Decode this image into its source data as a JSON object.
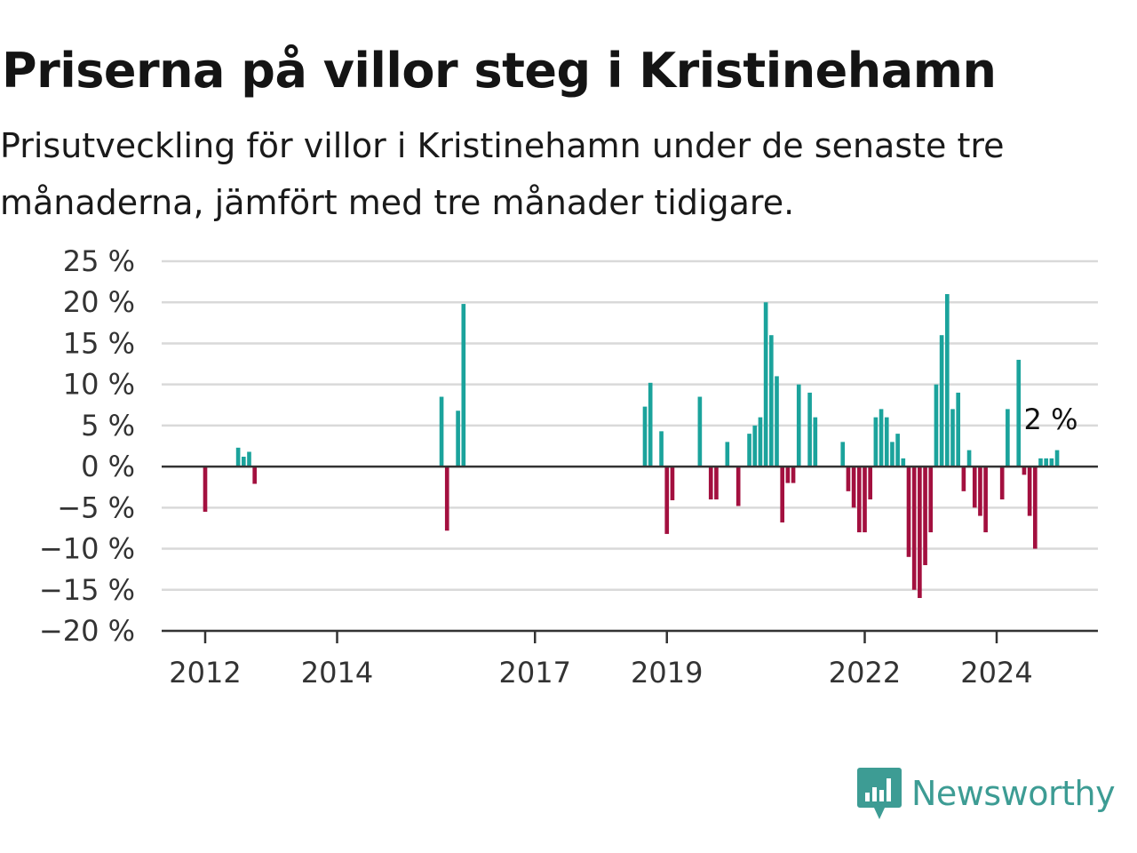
{
  "title": "Priserna på villor steg i Kristinehamn",
  "subtitle": "Prisutveckling för villor i Kristinehamn under de senaste tre månaderna, jämfört med tre månader tidigare.",
  "brand": {
    "name": "Newsworthy",
    "color": "#3d9c94",
    "icon": "newsworthy-logo-icon"
  },
  "colors": {
    "positive": "#1ba39c",
    "negative": "#a3103f",
    "grid": "#d9d9d9",
    "zero_line": "#333333"
  },
  "chart_data": {
    "type": "bar",
    "title": "Priserna på villor steg i Kristinehamn",
    "xlabel": "",
    "ylabel": "",
    "ylim": [
      -20,
      25
    ],
    "y_ticks": [
      25,
      20,
      15,
      10,
      5,
      0,
      -5,
      -10,
      -15,
      -20
    ],
    "y_tick_labels": [
      "25 %",
      "20 %",
      "15 %",
      "10 %",
      "5 %",
      "0 %",
      "−5 %",
      "−10 %",
      "−15 %",
      "−20 %"
    ],
    "x_ticks": [
      {
        "label": "2012",
        "date": "2012-01"
      },
      {
        "label": "2014",
        "date": "2014-01"
      },
      {
        "label": "2017",
        "date": "2017-01"
      },
      {
        "label": "2019",
        "date": "2019-01"
      },
      {
        "label": "2022",
        "date": "2022-01"
      },
      {
        "label": "2024",
        "date": "2024-01"
      }
    ],
    "xlim": [
      "2011-05",
      "2025-06"
    ],
    "last_value_label": "2 %",
    "grid": true,
    "legend": "none",
    "series": [
      {
        "data": [
          {
            "date": "2012-01",
            "value": -5.5
          },
          {
            "date": "2012-07",
            "value": 2.3
          },
          {
            "date": "2012-08",
            "value": 1.2
          },
          {
            "date": "2012-09",
            "value": 1.8
          },
          {
            "date": "2012-10",
            "value": -2.1
          },
          {
            "date": "2015-08",
            "value": 8.5
          },
          {
            "date": "2015-09",
            "value": -7.8
          },
          {
            "date": "2015-11",
            "value": 6.8
          },
          {
            "date": "2015-12",
            "value": 19.8
          },
          {
            "date": "2018-09",
            "value": 7.3
          },
          {
            "date": "2018-10",
            "value": 10.2
          },
          {
            "date": "2018-12",
            "value": 4.3
          },
          {
            "date": "2019-01",
            "value": -8.2
          },
          {
            "date": "2019-02",
            "value": -4.1
          },
          {
            "date": "2019-07",
            "value": 8.5
          },
          {
            "date": "2019-09",
            "value": -4.0
          },
          {
            "date": "2019-10",
            "value": -4.0
          },
          {
            "date": "2019-12",
            "value": 3.0
          },
          {
            "date": "2020-02",
            "value": -4.8
          },
          {
            "date": "2020-04",
            "value": 4.0
          },
          {
            "date": "2020-05",
            "value": 5.0
          },
          {
            "date": "2020-06",
            "value": 6.0
          },
          {
            "date": "2020-07",
            "value": 20.0
          },
          {
            "date": "2020-08",
            "value": 16.0
          },
          {
            "date": "2020-09",
            "value": 11.0
          },
          {
            "date": "2020-10",
            "value": -6.8
          },
          {
            "date": "2020-11",
            "value": -2.0
          },
          {
            "date": "2020-12",
            "value": -2.0
          },
          {
            "date": "2021-01",
            "value": 10.0
          },
          {
            "date": "2021-03",
            "value": 9.0
          },
          {
            "date": "2021-04",
            "value": 6.0
          },
          {
            "date": "2021-09",
            "value": 3.0
          },
          {
            "date": "2021-10",
            "value": -3.0
          },
          {
            "date": "2021-11",
            "value": -5.0
          },
          {
            "date": "2021-12",
            "value": -8.0
          },
          {
            "date": "2022-01",
            "value": -8.0
          },
          {
            "date": "2022-02",
            "value": -4.0
          },
          {
            "date": "2022-03",
            "value": 6.0
          },
          {
            "date": "2022-04",
            "value": 7.0
          },
          {
            "date": "2022-05",
            "value": 6.0
          },
          {
            "date": "2022-06",
            "value": 3.0
          },
          {
            "date": "2022-07",
            "value": 4.0
          },
          {
            "date": "2022-08",
            "value": 1.0
          },
          {
            "date": "2022-09",
            "value": -11.0
          },
          {
            "date": "2022-10",
            "value": -15.0
          },
          {
            "date": "2022-11",
            "value": -16.0
          },
          {
            "date": "2022-12",
            "value": -12.0
          },
          {
            "date": "2023-01",
            "value": -8.0
          },
          {
            "date": "2023-02",
            "value": 10.0
          },
          {
            "date": "2023-03",
            "value": 16.0
          },
          {
            "date": "2023-04",
            "value": 21.0
          },
          {
            "date": "2023-05",
            "value": 7.0
          },
          {
            "date": "2023-06",
            "value": 9.0
          },
          {
            "date": "2023-07",
            "value": -3.0
          },
          {
            "date": "2023-08",
            "value": 2.0
          },
          {
            "date": "2023-09",
            "value": -5.0
          },
          {
            "date": "2023-10",
            "value": -6.0
          },
          {
            "date": "2023-11",
            "value": -8.0
          },
          {
            "date": "2024-02",
            "value": -4.0
          },
          {
            "date": "2024-03",
            "value": 7.0
          },
          {
            "date": "2024-05",
            "value": 13.0
          },
          {
            "date": "2024-06",
            "value": -1.0
          },
          {
            "date": "2024-07",
            "value": -6.0
          },
          {
            "date": "2024-08",
            "value": -10.0
          },
          {
            "date": "2024-09",
            "value": 1.0
          },
          {
            "date": "2024-10",
            "value": 1.0
          },
          {
            "date": "2024-11",
            "value": 1.0
          },
          {
            "date": "2024-12",
            "value": 2.0
          }
        ]
      }
    ]
  }
}
